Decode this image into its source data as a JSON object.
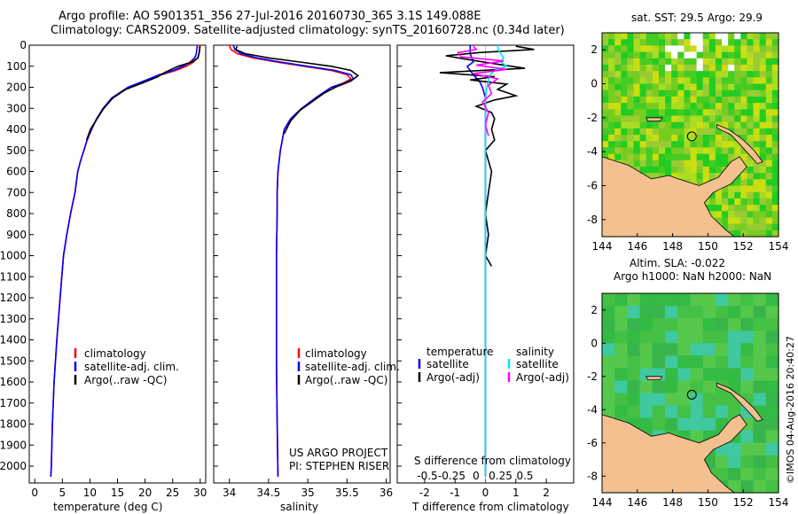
{
  "header": {
    "title_line1": "Argo profile: AO 5901351_356 27-Jul-2016 20160730_365 3.1S 149.088E",
    "title_line2": "Climatology: CARS2009. Satellite-adjusted climatology: synTS_20160728.nc (0.34d later)"
  },
  "colors": {
    "climatology": "#ff0000",
    "satellite": "#0000ff",
    "argo": "#000000",
    "salinity_satellite": "#00e5ee",
    "salinity_argo": "#ff00ff",
    "land": "#f4c090",
    "axis": "#000000"
  },
  "chart_data": [
    {
      "type": "line",
      "id": "temperature",
      "xlabel": "temperature (deg C)",
      "ylabel": "",
      "xlim": [
        -1,
        31
      ],
      "ylim": [
        2080,
        0
      ],
      "xticks": [
        0,
        5,
        10,
        15,
        20,
        25,
        30
      ],
      "yticks": [
        0,
        100,
        200,
        300,
        400,
        500,
        600,
        700,
        800,
        900,
        1000,
        1100,
        1200,
        1300,
        1400,
        1500,
        1600,
        1700,
        1800,
        1900,
        2000
      ],
      "legend": [
        "climatology",
        "satellite-adj. clim.",
        "Argo(..raw -QC)"
      ],
      "series": [
        {
          "name": "climatology",
          "color_key": "climatology",
          "x": [
            30.0,
            29.9,
            29.8,
            29.5,
            28.8,
            27.5,
            25.6,
            23.0,
            20.0,
            17.0,
            14.0,
            12.4,
            11.2,
            10.3,
            9.5,
            8.9,
            8.3,
            7.8,
            7.3,
            6.5,
            5.8,
            5.2,
            4.6,
            4.0,
            3.5,
            3.2,
            3.0,
            2.9
          ],
          "y": [
            0,
            20,
            40,
            60,
            80,
            100,
            120,
            140,
            170,
            200,
            250,
            300,
            350,
            400,
            450,
            500,
            550,
            600,
            700,
            800,
            900,
            1000,
            1200,
            1400,
            1600,
            1800,
            2000,
            2050
          ]
        },
        {
          "name": "satellite",
          "color_key": "satellite",
          "x": [
            29.5,
            29.4,
            29.3,
            29.0,
            28.2,
            26.9,
            25.1,
            22.6,
            19.8,
            16.9,
            14.0,
            12.4,
            11.2,
            10.3,
            9.5,
            8.9,
            8.3,
            7.8,
            7.3,
            6.5,
            5.8,
            5.2,
            4.6,
            4.0,
            3.5,
            3.2,
            3.0,
            2.9
          ],
          "y": [
            0,
            20,
            40,
            60,
            80,
            100,
            120,
            140,
            170,
            200,
            250,
            300,
            350,
            400,
            450,
            500,
            550,
            600,
            700,
            800,
            900,
            1000,
            1200,
            1400,
            1600,
            1800,
            2000,
            2050
          ]
        },
        {
          "name": "argo",
          "color_key": "argo",
          "x": [
            29.9,
            29.9,
            29.8,
            29.6,
            28.5,
            26.0,
            23.5,
            22.3,
            19.5,
            16.5,
            14.2,
            12.5,
            11.3,
            10.1,
            9.4
          ],
          "y": [
            5,
            20,
            40,
            60,
            80,
            100,
            130,
            150,
            180,
            210,
            250,
            300,
            350,
            400,
            450
          ]
        }
      ]
    },
    {
      "type": "line",
      "id": "salinity",
      "xlabel": "salinity",
      "ylabel": "",
      "xlim": [
        33.8,
        36.05
      ],
      "ylim": [
        2080,
        0
      ],
      "xticks": [
        34,
        34.5,
        35,
        35.5,
        36
      ],
      "legend": [
        "climatology",
        "satellite-adj. clim.",
        "Argo(..raw -QC)"
      ],
      "series": [
        {
          "name": "climatology",
          "color_key": "climatology",
          "x": [
            34.0,
            34.02,
            34.1,
            34.3,
            34.6,
            34.95,
            35.3,
            35.5,
            35.55,
            35.45,
            35.3,
            35.1,
            34.92,
            34.78,
            34.7,
            34.65,
            34.62,
            34.61,
            34.61,
            34.6,
            34.6,
            34.6,
            34.61,
            34.62
          ],
          "y": [
            0,
            20,
            40,
            60,
            80,
            100,
            120,
            140,
            160,
            180,
            200,
            250,
            300,
            350,
            400,
            500,
            600,
            700,
            800,
            1000,
            1200,
            1500,
            1800,
            2050
          ]
        },
        {
          "name": "satellite",
          "color_key": "satellite",
          "x": [
            34.05,
            34.07,
            34.15,
            34.35,
            34.65,
            35.0,
            35.35,
            35.55,
            35.58,
            35.47,
            35.3,
            35.1,
            34.92,
            34.78,
            34.7,
            34.65,
            34.62,
            34.61,
            34.61,
            34.6,
            34.6,
            34.6,
            34.61,
            34.62
          ],
          "y": [
            0,
            20,
            40,
            60,
            80,
            100,
            120,
            140,
            160,
            180,
            200,
            250,
            300,
            350,
            400,
            500,
            600,
            700,
            800,
            1000,
            1200,
            1500,
            1800,
            2050
          ]
        },
        {
          "name": "argo",
          "color_key": "argo",
          "x": [
            34.1,
            34.08,
            34.2,
            34.5,
            34.9,
            35.3,
            35.55,
            35.64,
            35.55,
            35.35,
            35.2,
            35.05,
            34.9,
            34.78,
            34.7
          ],
          "y": [
            5,
            20,
            40,
            60,
            80,
            100,
            120,
            145,
            170,
            200,
            230,
            270,
            310,
            360,
            420
          ]
        }
      ]
    },
    {
      "type": "line",
      "id": "differences",
      "xlabel": "T difference from climatology",
      "top_xlabel": "S difference from climatology",
      "xlim": [
        -2.9,
        2.9
      ],
      "ylim": [
        2080,
        0
      ],
      "xticks": [
        -2,
        -1,
        0,
        1,
        2
      ],
      "top_xticks": [
        -0.5,
        -0.25,
        0,
        0.25,
        0.5
      ],
      "top_tick_labels": [
        "-0.5",
        "-0.25",
        "0",
        "0.25",
        "0.5"
      ],
      "legend": {
        "temperature_heading": "temperature",
        "salinity_heading": "salinity",
        "satellite": "satellite",
        "argo": "Argo(-adj)"
      },
      "series": [
        {
          "name": "temperature satellite",
          "color_key": "satellite",
          "x": [
            -0.5,
            -0.5,
            -0.5,
            -0.45,
            -0.4,
            -0.6,
            -0.5,
            -0.4,
            -0.2,
            -0.1,
            0,
            0,
            0,
            0,
            0,
            0
          ],
          "y": [
            0,
            20,
            40,
            60,
            80,
            100,
            120,
            140,
            170,
            200,
            250,
            300,
            400,
            600,
            1000,
            2050
          ]
        },
        {
          "name": "temperature argo",
          "color_key": "argo",
          "x": [
            1.0,
            1.6,
            -0.2,
            -1.3,
            -0.5,
            0.4,
            1.3,
            -1.5,
            0.3,
            -0.5,
            0.7,
            0.4,
            1.0,
            0.3,
            -0.3,
            0.2,
            0.3,
            0.2,
            0.3,
            0.0,
            0.2,
            0.1,
            0.0,
            0.1,
            0.0,
            0.2
          ],
          "y": [
            5,
            20,
            35,
            50,
            70,
            90,
            110,
            130,
            150,
            165,
            185,
            210,
            240,
            260,
            290,
            320,
            350,
            400,
            450,
            500,
            600,
            700,
            800,
            900,
            1000,
            1050
          ]
        },
        {
          "name": "salinity satellite",
          "color_key": "salinity_satellite",
          "x": [
            0.4,
            0.42,
            0.5,
            0.6,
            0.5,
            0.7,
            0.3,
            0.15,
            0.1,
            0.05,
            0,
            0,
            0,
            0,
            0,
            0
          ],
          "y": [
            0,
            20,
            40,
            60,
            80,
            100,
            120,
            140,
            170,
            200,
            250,
            300,
            400,
            600,
            1000,
            2050
          ]
        },
        {
          "name": "salinity argo",
          "color_key": "salinity_argo",
          "x": [
            -0.4,
            -0.3,
            -0.9,
            -0.8,
            0.6,
            -0.3,
            0.7,
            -0.4,
            0.4,
            0.1,
            0.2,
            -0.1,
            0.1,
            0.0,
            0.1
          ],
          "y": [
            5,
            20,
            35,
            55,
            75,
            95,
            115,
            135,
            160,
            190,
            230,
            270,
            320,
            380,
            430
          ]
        }
      ]
    },
    {
      "type": "heatmap",
      "id": "sst-map",
      "title": "sat. SST: 29.5 Argo: 29.9",
      "xlim": [
        144,
        154
      ],
      "ylim": [
        -9,
        3
      ],
      "xticks": [
        144,
        146,
        148,
        150,
        152,
        154
      ],
      "yticks": [
        2,
        0,
        -2,
        -4,
        -6,
        -8
      ],
      "argo_position": {
        "lon": 149.088,
        "lat": -3.1
      },
      "palette": [
        "#22cc22",
        "#44cc22",
        "#77cc22",
        "#aadd22",
        "#ccdd11",
        "#99cc33"
      ]
    },
    {
      "type": "heatmap",
      "id": "sla-map",
      "title": "Altim. SLA: -0.022",
      "subtitle": "Argo h1000: NaN h2000: NaN",
      "xlim": [
        144,
        154
      ],
      "ylim": [
        -9,
        3
      ],
      "xticks": [
        144,
        146,
        148,
        150,
        152,
        154
      ],
      "yticks": [
        2,
        0,
        -2,
        -4,
        -6,
        -8
      ],
      "argo_position": {
        "lon": 149.088,
        "lat": -3.1
      },
      "palette": [
        "#33bb44",
        "#44c044",
        "#55c84c",
        "#38b54a",
        "#40c8a0"
      ]
    }
  ],
  "annotations": {
    "project": "US ARGO PROJECT",
    "pi": "PI: STEPHEN RISER",
    "credit": "©IMOS 04-Aug-2016 20:40:27"
  }
}
